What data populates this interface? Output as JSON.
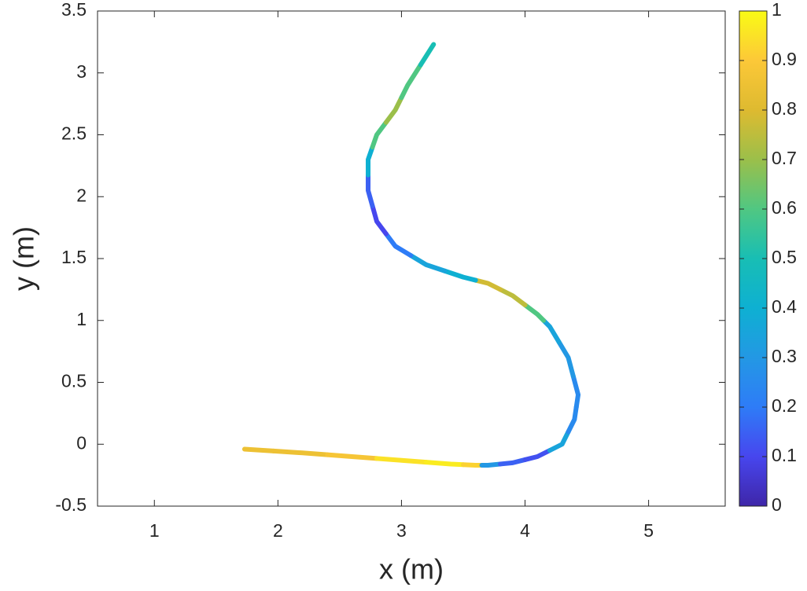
{
  "chart_data": {
    "type": "line",
    "xlabel": "x (m)",
    "ylabel": "y (m)",
    "x": [
      1.73,
      2.2,
      2.6,
      3.0,
      3.4,
      3.6,
      3.7,
      3.9,
      4.1,
      4.3,
      4.4,
      4.43,
      4.35,
      4.2,
      4.1,
      3.9,
      3.7,
      3.5,
      3.2,
      2.95,
      2.8,
      2.73,
      2.73,
      2.8,
      2.95,
      3.05,
      3.26
    ],
    "values": [
      -0.04,
      -0.07,
      -0.1,
      -0.13,
      -0.16,
      -0.17,
      -0.17,
      -0.15,
      -0.1,
      0.0,
      0.2,
      0.4,
      0.7,
      0.95,
      1.05,
      1.2,
      1.3,
      1.35,
      1.45,
      1.6,
      1.8,
      2.05,
      2.3,
      2.5,
      2.7,
      2.9,
      3.23
    ],
    "color_values": [
      0.85,
      0.85,
      0.88,
      0.95,
      0.97,
      0.92,
      0.3,
      0.15,
      0.12,
      0.35,
      0.25,
      0.25,
      0.3,
      0.35,
      0.6,
      0.75,
      0.78,
      0.4,
      0.35,
      0.2,
      0.1,
      0.15,
      0.4,
      0.6,
      0.7,
      0.6,
      0.5
    ],
    "colormap": "parula",
    "xlim": [
      0.54,
      5.62
    ],
    "ylim": [
      -0.5,
      3.5
    ],
    "xticks": [
      1,
      2,
      3,
      4,
      5
    ],
    "yticks": [
      -0.5,
      0,
      0.5,
      1,
      1.5,
      2,
      2.5,
      3,
      3.5
    ],
    "clim": [
      0,
      1
    ],
    "cticks": [
      0,
      0.1,
      0.2,
      0.3,
      0.4,
      0.5,
      0.6,
      0.7,
      0.8,
      0.9,
      1
    ],
    "grid": false
  }
}
